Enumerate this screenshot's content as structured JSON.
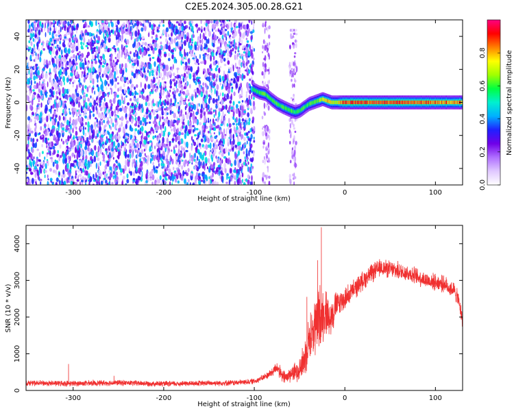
{
  "title": "C2E5.2024.305.00.28.G21",
  "chart_data": [
    {
      "type": "heatmap",
      "xlabel": "Height of straight line (km)",
      "ylabel": "Frequency (Hz)",
      "xlim": [
        -352,
        130
      ],
      "ylim": [
        -50,
        50
      ],
      "xticks": [
        -300,
        -200,
        -100,
        0,
        100
      ],
      "yticks": [
        -40,
        -20,
        0,
        20,
        40
      ],
      "colorbar": {
        "label": "Normalized spectral amplitude",
        "range": [
          0,
          1
        ],
        "ticks": [
          0.0,
          0.2,
          0.4,
          0.6,
          0.8
        ],
        "colors": [
          "#ffffff",
          "#e0c8ff",
          "#b070ff",
          "#7000e8",
          "#2020ff",
          "#00b0ff",
          "#00f0d0",
          "#00ff40",
          "#a0ff00",
          "#ffff00",
          "#ff8000",
          "#ff0000",
          "#ff0080"
        ]
      },
      "noise_region_x": [
        -352,
        -100
      ],
      "noise_stripes_x": [
        -87,
        -57
      ],
      "ridge": {
        "x": [
          -102,
          -95,
          -88,
          -82,
          -75,
          -68,
          -60,
          -55,
          -50,
          -45,
          -40,
          -35,
          -30,
          -25,
          -20,
          -15,
          -10,
          -5,
          0,
          20,
          60,
          100,
          130
        ],
        "y": [
          8,
          6,
          5,
          2,
          -1,
          -3,
          -5,
          -6,
          -5,
          -3,
          -1,
          0,
          1,
          2,
          1,
          0,
          0,
          0,
          0,
          0,
          0,
          0,
          0
        ],
        "peak_amplitude": [
          0.55,
          0.6,
          0.62,
          0.6,
          0.6,
          0.62,
          0.6,
          0.55,
          0.6,
          0.62,
          0.6,
          0.62,
          0.65,
          0.75,
          0.82,
          0.75,
          0.7,
          0.85,
          0.9,
          0.9,
          0.88,
          0.85,
          0.85
        ]
      }
    },
    {
      "type": "line",
      "xlabel": "Height of straight line (km)",
      "ylabel": "SNR (10 * v/v)",
      "xlim": [
        -352,
        130
      ],
      "ylim": [
        0,
        4500
      ],
      "xticks": [
        -300,
        -200,
        -100,
        0,
        100
      ],
      "yticks": [
        0,
        1000,
        2000,
        3000,
        4000
      ],
      "color": "#f03030",
      "series": [
        {
          "x": [
            -352,
            -300,
            -250,
            -200,
            -150,
            -120,
            -100,
            -90,
            -80,
            -75,
            -70,
            -65,
            -60,
            -55,
            -50,
            -45,
            -40,
            -35,
            -30,
            -25,
            -20,
            -15,
            -10,
            -5,
            0,
            10,
            20,
            30,
            40,
            50,
            60,
            70,
            80,
            90,
            100,
            110,
            115,
            120,
            125,
            130
          ],
          "y": [
            200,
            190,
            210,
            180,
            200,
            210,
            250,
            350,
            500,
            650,
            400,
            350,
            450,
            500,
            600,
            800,
            1400,
            1600,
            1900,
            2100,
            2100,
            2000,
            2300,
            2400,
            2500,
            2750,
            3000,
            3200,
            3350,
            3300,
            3250,
            3200,
            3100,
            3000,
            2950,
            2900,
            2800,
            2750,
            2500,
            1900
          ],
          "noise_amplitude": [
            90,
            90,
            90,
            90,
            90,
            90,
            90,
            100,
            150,
            200,
            220,
            230,
            250,
            300,
            400,
            600,
            700,
            900,
            1200,
            900,
            700,
            600,
            500,
            400,
            350,
            320,
            300,
            300,
            280,
            280,
            280,
            280,
            270,
            270,
            260,
            260,
            260,
            260,
            250,
            250
          ]
        }
      ],
      "spikes": [
        {
          "x": -352,
          "y": 350
        },
        {
          "x": -305,
          "y": 720
        },
        {
          "x": -255,
          "y": 400
        },
        {
          "x": -42,
          "y": 2550
        },
        {
          "x": -30,
          "y": 3550
        },
        {
          "x": -26,
          "y": 4450
        }
      ]
    }
  ]
}
